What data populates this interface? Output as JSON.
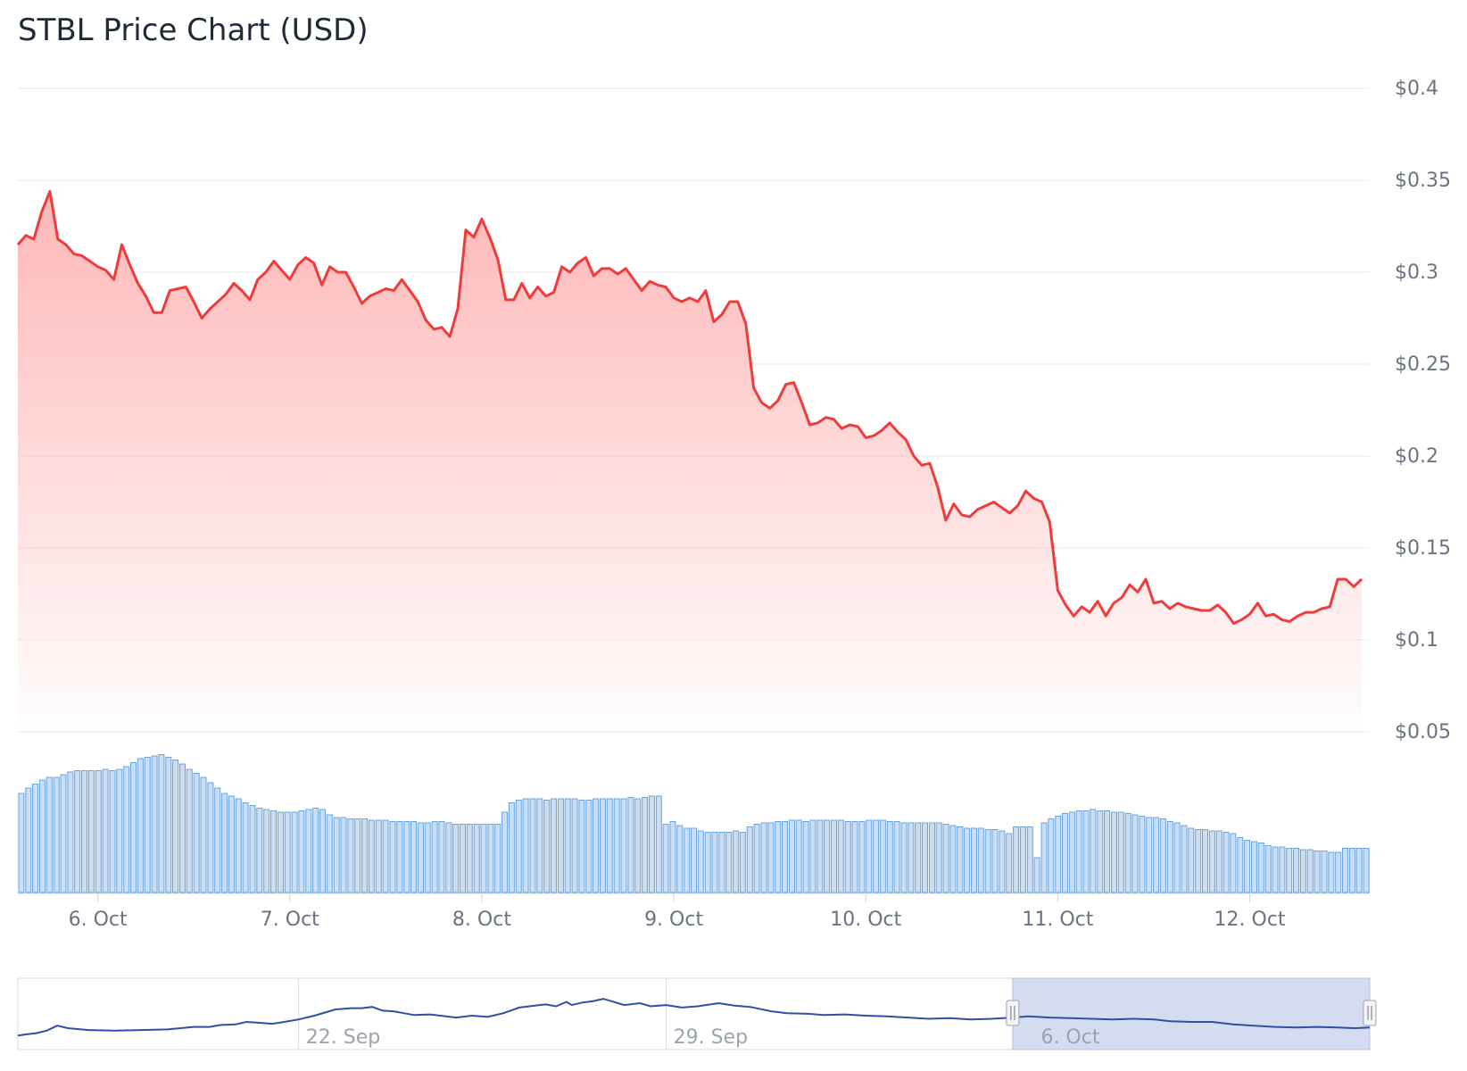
{
  "title": "STBL Price Chart (USD)",
  "colors": {
    "price_line": "#ef3b3b",
    "price_fill": "#ffb3b3",
    "volume_fill": "#c9def5",
    "volume_stroke": "#6aa4db",
    "grid": "#e8e8e8",
    "navigator_line": "#2f4fa6",
    "navigator_mask": "#c7cfeb"
  },
  "chart_data": {
    "type": "line",
    "title": "STBL Price Chart (USD)",
    "yaxis": {
      "position": "right",
      "ticks": [
        "$0.05",
        "$0.1",
        "$0.15",
        "$0.2",
        "$0.25",
        "$0.3",
        "$0.35",
        "$0.4"
      ],
      "tick_values": [
        0.05,
        0.1,
        0.15,
        0.2,
        0.25,
        0.3,
        0.35,
        0.4
      ],
      "ylim": [
        0.05,
        0.4
      ]
    },
    "xaxis": {
      "range": [
        "Oct 5 14:00",
        "Oct 12 15:00"
      ],
      "xlim_hours": [
        0,
        169
      ],
      "ticks": [
        {
          "label": "6. Oct",
          "hour": 10
        },
        {
          "label": "7. Oct",
          "hour": 34
        },
        {
          "label": "8. Oct",
          "hour": 58
        },
        {
          "label": "9. Oct",
          "hour": 82
        },
        {
          "label": "10. Oct",
          "hour": 106
        },
        {
          "label": "11. Oct",
          "hour": 130
        },
        {
          "label": "12. Oct",
          "hour": 154
        }
      ]
    },
    "grid": true,
    "series": [
      {
        "type": "area",
        "points": [
          [
            0,
            0.315
          ],
          [
            1,
            0.32
          ],
          [
            2,
            0.318
          ],
          [
            3,
            0.333
          ],
          [
            4,
            0.344
          ],
          [
            5,
            0.318
          ],
          [
            6,
            0.315
          ],
          [
            7,
            0.31
          ],
          [
            8,
            0.309
          ],
          [
            9,
            0.306
          ],
          [
            10,
            0.303
          ],
          [
            11,
            0.301
          ],
          [
            12,
            0.296
          ],
          [
            13,
            0.315
          ],
          [
            14,
            0.304
          ],
          [
            15,
            0.294
          ],
          [
            16,
            0.287
          ],
          [
            17,
            0.278
          ],
          [
            18,
            0.278
          ],
          [
            19,
            0.29
          ],
          [
            20,
            0.291
          ],
          [
            21,
            0.292
          ],
          [
            22,
            0.284
          ],
          [
            23,
            0.275
          ],
          [
            24,
            0.28
          ],
          [
            25,
            0.284
          ],
          [
            26,
            0.288
          ],
          [
            27,
            0.294
          ],
          [
            28,
            0.29
          ],
          [
            29,
            0.285
          ],
          [
            30,
            0.296
          ],
          [
            31,
            0.3
          ],
          [
            32,
            0.306
          ],
          [
            33,
            0.301
          ],
          [
            34,
            0.296
          ],
          [
            35,
            0.304
          ],
          [
            36,
            0.308
          ],
          [
            37,
            0.305
          ],
          [
            38,
            0.293
          ],
          [
            39,
            0.303
          ],
          [
            40,
            0.3
          ],
          [
            41,
            0.3
          ],
          [
            42,
            0.292
          ],
          [
            43,
            0.283
          ],
          [
            44,
            0.287
          ],
          [
            45,
            0.289
          ],
          [
            46,
            0.291
          ],
          [
            47,
            0.29
          ],
          [
            48,
            0.296
          ],
          [
            49,
            0.29
          ],
          [
            50,
            0.284
          ],
          [
            51,
            0.274
          ],
          [
            52,
            0.269
          ],
          [
            53,
            0.27
          ],
          [
            54,
            0.265
          ],
          [
            55,
            0.28
          ],
          [
            56,
            0.323
          ],
          [
            57,
            0.319
          ],
          [
            58,
            0.329
          ],
          [
            59,
            0.319
          ],
          [
            60,
            0.307
          ],
          [
            61,
            0.285
          ],
          [
            62,
            0.285
          ],
          [
            63,
            0.294
          ],
          [
            64,
            0.286
          ],
          [
            65,
            0.292
          ],
          [
            66,
            0.287
          ],
          [
            67,
            0.289
          ],
          [
            68,
            0.303
          ],
          [
            69,
            0.3
          ],
          [
            70,
            0.305
          ],
          [
            71,
            0.308
          ],
          [
            72,
            0.298
          ],
          [
            73,
            0.302
          ],
          [
            74,
            0.302
          ],
          [
            75,
            0.299
          ],
          [
            76,
            0.302
          ],
          [
            77,
            0.296
          ],
          [
            78,
            0.29
          ],
          [
            79,
            0.295
          ],
          [
            80,
            0.293
          ],
          [
            81,
            0.292
          ],
          [
            82,
            0.286
          ],
          [
            83,
            0.284
          ],
          [
            84,
            0.286
          ],
          [
            85,
            0.284
          ],
          [
            86,
            0.29
          ],
          [
            87,
            0.273
          ],
          [
            88,
            0.277
          ],
          [
            89,
            0.284
          ],
          [
            90,
            0.284
          ],
          [
            91,
            0.272
          ],
          [
            92,
            0.237
          ],
          [
            93,
            0.229
          ],
          [
            94,
            0.226
          ],
          [
            95,
            0.23
          ],
          [
            96,
            0.239
          ],
          [
            97,
            0.24
          ],
          [
            98,
            0.229
          ],
          [
            99,
            0.217
          ],
          [
            100,
            0.218
          ],
          [
            101,
            0.221
          ],
          [
            102,
            0.22
          ],
          [
            103,
            0.215
          ],
          [
            104,
            0.217
          ],
          [
            105,
            0.216
          ],
          [
            106,
            0.21
          ],
          [
            107,
            0.211
          ],
          [
            108,
            0.214
          ],
          [
            109,
            0.218
          ],
          [
            110,
            0.213
          ],
          [
            111,
            0.209
          ],
          [
            112,
            0.2
          ],
          [
            113,
            0.195
          ],
          [
            114,
            0.196
          ],
          [
            115,
            0.183
          ],
          [
            116,
            0.165
          ],
          [
            117,
            0.174
          ],
          [
            118,
            0.168
          ],
          [
            119,
            0.167
          ],
          [
            120,
            0.171
          ],
          [
            121,
            0.173
          ],
          [
            122,
            0.175
          ],
          [
            123,
            0.172
          ],
          [
            124,
            0.169
          ],
          [
            125,
            0.173
          ],
          [
            126,
            0.181
          ],
          [
            127,
            0.177
          ],
          [
            128,
            0.175
          ],
          [
            129,
            0.164
          ],
          [
            130,
            0.127
          ],
          [
            131,
            0.119
          ],
          [
            132,
            0.113
          ],
          [
            133,
            0.118
          ],
          [
            134,
            0.115
          ],
          [
            135,
            0.121
          ],
          [
            136,
            0.113
          ],
          [
            137,
            0.12
          ],
          [
            138,
            0.123
          ],
          [
            139,
            0.13
          ],
          [
            140,
            0.126
          ],
          [
            141,
            0.133
          ],
          [
            142,
            0.12
          ],
          [
            143,
            0.121
          ],
          [
            144,
            0.117
          ],
          [
            145,
            0.12
          ],
          [
            146,
            0.118
          ],
          [
            147,
            0.117
          ],
          [
            148,
            0.116
          ],
          [
            149,
            0.116
          ],
          [
            150,
            0.119
          ],
          [
            151,
            0.115
          ],
          [
            152,
            0.109
          ],
          [
            153,
            0.111
          ],
          [
            154,
            0.114
          ],
          [
            155,
            0.12
          ],
          [
            156,
            0.113
          ],
          [
            157,
            0.114
          ],
          [
            158,
            0.111
          ],
          [
            159,
            0.11
          ],
          [
            160,
            0.113
          ],
          [
            161,
            0.115
          ],
          [
            162,
            0.115
          ],
          [
            163,
            0.117
          ],
          [
            164,
            0.118
          ],
          [
            165,
            0.133
          ],
          [
            166,
            0.133
          ],
          [
            167,
            0.129
          ],
          [
            168,
            0.133
          ]
        ]
      },
      {
        "type": "column",
        "relative_levels": [
          0.74,
          0.78,
          0.81,
          0.84,
          0.86,
          0.86,
          0.88,
          0.9,
          0.91,
          0.91,
          0.91,
          0.91,
          0.92,
          0.91,
          0.92,
          0.94,
          0.97,
          1.0,
          1.01,
          1.02,
          1.03,
          1.01,
          0.99,
          0.96,
          0.92,
          0.89,
          0.86,
          0.82,
          0.78,
          0.74,
          0.72,
          0.7,
          0.67,
          0.65,
          0.63,
          0.62,
          0.61,
          0.6,
          0.6,
          0.6,
          0.61,
          0.62,
          0.63,
          0.62,
          0.58,
          0.56,
          0.56,
          0.55,
          0.55,
          0.55,
          0.54,
          0.54,
          0.54,
          0.53,
          0.53,
          0.53,
          0.53,
          0.52,
          0.52,
          0.53,
          0.53,
          0.52,
          0.51,
          0.51,
          0.51,
          0.51,
          0.51,
          0.51,
          0.51,
          0.6,
          0.67,
          0.69,
          0.7,
          0.7,
          0.7,
          0.69,
          0.7,
          0.7,
          0.7,
          0.7,
          0.69,
          0.69,
          0.7,
          0.7,
          0.7,
          0.7,
          0.7,
          0.71,
          0.7,
          0.71,
          0.72,
          0.72,
          0.51,
          0.53,
          0.5,
          0.48,
          0.48,
          0.46,
          0.45,
          0.45,
          0.45,
          0.45,
          0.46,
          0.45,
          0.49,
          0.51,
          0.52,
          0.52,
          0.53,
          0.53,
          0.54,
          0.54,
          0.53,
          0.54,
          0.54,
          0.54,
          0.54,
          0.54,
          0.53,
          0.53,
          0.53,
          0.54,
          0.54,
          0.54,
          0.53,
          0.53,
          0.52,
          0.52,
          0.52,
          0.52,
          0.52,
          0.52,
          0.51,
          0.5,
          0.49,
          0.48,
          0.48,
          0.48,
          0.47,
          0.47,
          0.46,
          0.44,
          0.49,
          0.49,
          0.49,
          0.26,
          0.52,
          0.55,
          0.57,
          0.59,
          0.6,
          0.61,
          0.61,
          0.62,
          0.61,
          0.61,
          0.6,
          0.6,
          0.59,
          0.58,
          0.57,
          0.56,
          0.56,
          0.55,
          0.53,
          0.52,
          0.5,
          0.48,
          0.47,
          0.47,
          0.46,
          0.46,
          0.45,
          0.44,
          0.41,
          0.39,
          0.38,
          0.37,
          0.35,
          0.34,
          0.34,
          0.33,
          0.33,
          0.32,
          0.32,
          0.31,
          0.31,
          0.3,
          0.3,
          0.33,
          0.33,
          0.33,
          0.33
        ]
      }
    ],
    "navigator": {
      "ticks": [
        "22. Sep",
        "29. Sep",
        "6. Oct"
      ],
      "tick_days": [
        0,
        7,
        14
      ],
      "range_days": [
        -5.35,
        20.4
      ],
      "selected_days": [
        13.6,
        20.4
      ],
      "points": [
        [
          -5.35,
          0.08
        ],
        [
          -5.2,
          0.1
        ],
        [
          -5.0,
          0.12
        ],
        [
          -4.8,
          0.16
        ],
        [
          -4.6,
          0.24
        ],
        [
          -4.4,
          0.2
        ],
        [
          -4.0,
          0.17
        ],
        [
          -3.5,
          0.16
        ],
        [
          -3.0,
          0.17
        ],
        [
          -2.5,
          0.18
        ],
        [
          -2.0,
          0.22
        ],
        [
          -1.7,
          0.22
        ],
        [
          -1.5,
          0.25
        ],
        [
          -1.2,
          0.26
        ],
        [
          -1.0,
          0.3
        ],
        [
          -0.8,
          0.29
        ],
        [
          -0.5,
          0.27
        ],
        [
          -0.2,
          0.31
        ],
        [
          0.0,
          0.34
        ],
        [
          0.3,
          0.4
        ],
        [
          0.5,
          0.45
        ],
        [
          0.7,
          0.5
        ],
        [
          1.0,
          0.52
        ],
        [
          1.2,
          0.52
        ],
        [
          1.4,
          0.54
        ],
        [
          1.6,
          0.48
        ],
        [
          1.8,
          0.47
        ],
        [
          2.0,
          0.44
        ],
        [
          2.2,
          0.41
        ],
        [
          2.5,
          0.42
        ],
        [
          2.8,
          0.39
        ],
        [
          3.0,
          0.37
        ],
        [
          3.3,
          0.4
        ],
        [
          3.6,
          0.38
        ],
        [
          3.9,
          0.44
        ],
        [
          4.2,
          0.53
        ],
        [
          4.5,
          0.56
        ],
        [
          4.7,
          0.58
        ],
        [
          4.9,
          0.55
        ],
        [
          5.1,
          0.62
        ],
        [
          5.2,
          0.57
        ],
        [
          5.4,
          0.61
        ],
        [
          5.6,
          0.63
        ],
        [
          5.8,
          0.67
        ],
        [
          6.0,
          0.62
        ],
        [
          6.2,
          0.57
        ],
        [
          6.5,
          0.6
        ],
        [
          6.7,
          0.55
        ],
        [
          7.0,
          0.57
        ],
        [
          7.3,
          0.53
        ],
        [
          7.6,
          0.55
        ],
        [
          8.0,
          0.6
        ],
        [
          8.3,
          0.56
        ],
        [
          8.6,
          0.54
        ],
        [
          9.0,
          0.47
        ],
        [
          9.3,
          0.44
        ],
        [
          9.7,
          0.43
        ],
        [
          10.0,
          0.41
        ],
        [
          10.4,
          0.42
        ],
        [
          10.8,
          0.4
        ],
        [
          11.2,
          0.39
        ],
        [
          11.6,
          0.37
        ],
        [
          12.0,
          0.35
        ],
        [
          12.4,
          0.36
        ],
        [
          12.8,
          0.34
        ],
        [
          13.2,
          0.35
        ],
        [
          13.6,
          0.37
        ],
        [
          13.9,
          0.39
        ],
        [
          14.3,
          0.37
        ],
        [
          14.7,
          0.36
        ],
        [
          15.1,
          0.35
        ],
        [
          15.5,
          0.34
        ],
        [
          15.9,
          0.35
        ],
        [
          16.3,
          0.34
        ],
        [
          16.6,
          0.31
        ],
        [
          17.0,
          0.3
        ],
        [
          17.4,
          0.3
        ],
        [
          17.8,
          0.26
        ],
        [
          18.2,
          0.24
        ],
        [
          18.6,
          0.22
        ],
        [
          19.0,
          0.21
        ],
        [
          19.4,
          0.22
        ],
        [
          19.8,
          0.21
        ],
        [
          20.1,
          0.2
        ],
        [
          20.4,
          0.21
        ]
      ]
    }
  }
}
